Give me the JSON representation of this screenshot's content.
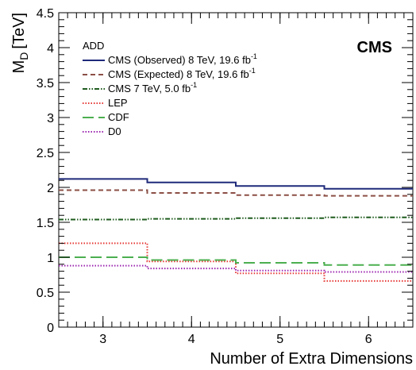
{
  "chart_data": {
    "type": "line",
    "xlabel": "Number of Extra Dimensions",
    "ylabel": "M",
    "ylabel_sub": "D",
    "ylabel_unit": "[TeV]",
    "xlim": [
      2.5,
      6.5
    ],
    "ylim": [
      0,
      4.5
    ],
    "x_ticks": [
      "3",
      "4",
      "5",
      "6"
    ],
    "y_ticks": [
      "0",
      "0.5",
      "1",
      "1.5",
      "2",
      "2.5",
      "3",
      "3.5",
      "4",
      "4.5"
    ],
    "grid": false,
    "experiment_label": "CMS",
    "legend_header": "ADD",
    "legend_placement": "top-left",
    "categories": [
      3,
      4,
      5,
      6
    ],
    "series": [
      {
        "name": "CMS (Observed) 8 TeV, 19.6 fb",
        "name_sup": "-1",
        "color": "#1f2a7a",
        "style": "solid",
        "values": [
          2.12,
          2.07,
          2.02,
          1.98
        ]
      },
      {
        "name": "CMS (Expected) 8 TeV, 19.6 fb",
        "name_sup": "-1",
        "color": "#8b4f45",
        "style": "dashed",
        "values": [
          1.96,
          1.92,
          1.89,
          1.88
        ]
      },
      {
        "name": "CMS 7 TeV, 5.0 fb",
        "name_sup": "-1",
        "color": "#1f5c1f",
        "style": "dashdotdot",
        "values": [
          1.54,
          1.55,
          1.56,
          1.57
        ]
      },
      {
        "name": "LEP",
        "name_sup": "",
        "color": "#e53935",
        "style": "dotted",
        "values": [
          1.2,
          0.94,
          0.77,
          0.66
        ]
      },
      {
        "name": "CDF",
        "name_sup": "",
        "color": "#4caf50",
        "style": "longdash",
        "values": [
          1.0,
          0.96,
          0.92,
          0.89
        ]
      },
      {
        "name": "D0",
        "name_sup": "",
        "color": "#9c27b0",
        "style": "dotted",
        "values": [
          0.88,
          0.84,
          0.81,
          0.79
        ]
      }
    ]
  }
}
